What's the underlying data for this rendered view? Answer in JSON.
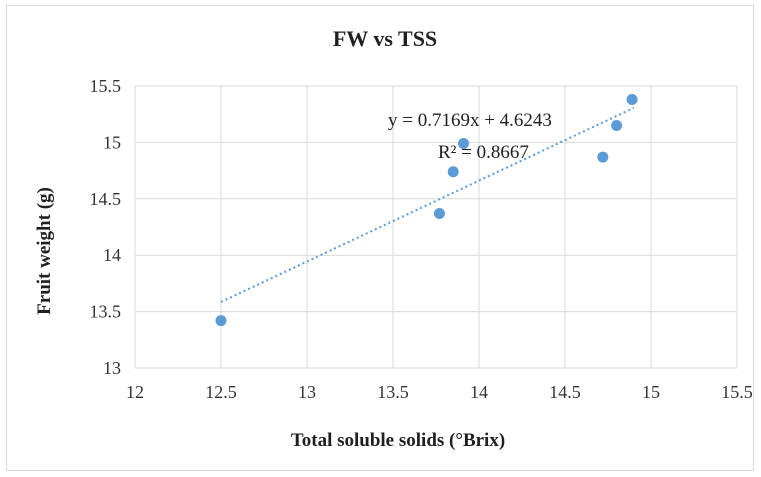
{
  "chart_data": {
    "type": "scatter",
    "title": "FW vs TSS",
    "xlabel": "Total soluble solids (°Brix)",
    "ylabel": "Fruit weight (g)",
    "xlim": [
      12,
      15.5
    ],
    "ylim": [
      13,
      15.5
    ],
    "xticks": [
      "12",
      "12.5",
      "13",
      "13.5",
      "14",
      "14.5",
      "15",
      "15.5"
    ],
    "yticks": [
      "13",
      "13.5",
      "14",
      "14.5",
      "15",
      "15.5"
    ],
    "grid": true,
    "series": [
      {
        "points": [
          {
            "x": 12.5,
            "y": 13.42
          },
          {
            "x": 13.77,
            "y": 14.37
          },
          {
            "x": 13.85,
            "y": 14.74
          },
          {
            "x": 13.91,
            "y": 14.99
          },
          {
            "x": 14.72,
            "y": 14.87
          },
          {
            "x": 14.8,
            "y": 15.15
          },
          {
            "x": 14.89,
            "y": 15.38
          }
        ],
        "color": "#5b9bd5"
      }
    ],
    "trendline": {
      "type": "linear",
      "slope": 0.7169,
      "intercept": 4.6243,
      "x_range": [
        12.5,
        14.9
      ],
      "style": "dotted",
      "color": "#5b9bd5"
    },
    "annotations": {
      "equation": "y = 0.7169x + 4.6243",
      "r_squared": "R² = 0.8667"
    }
  }
}
